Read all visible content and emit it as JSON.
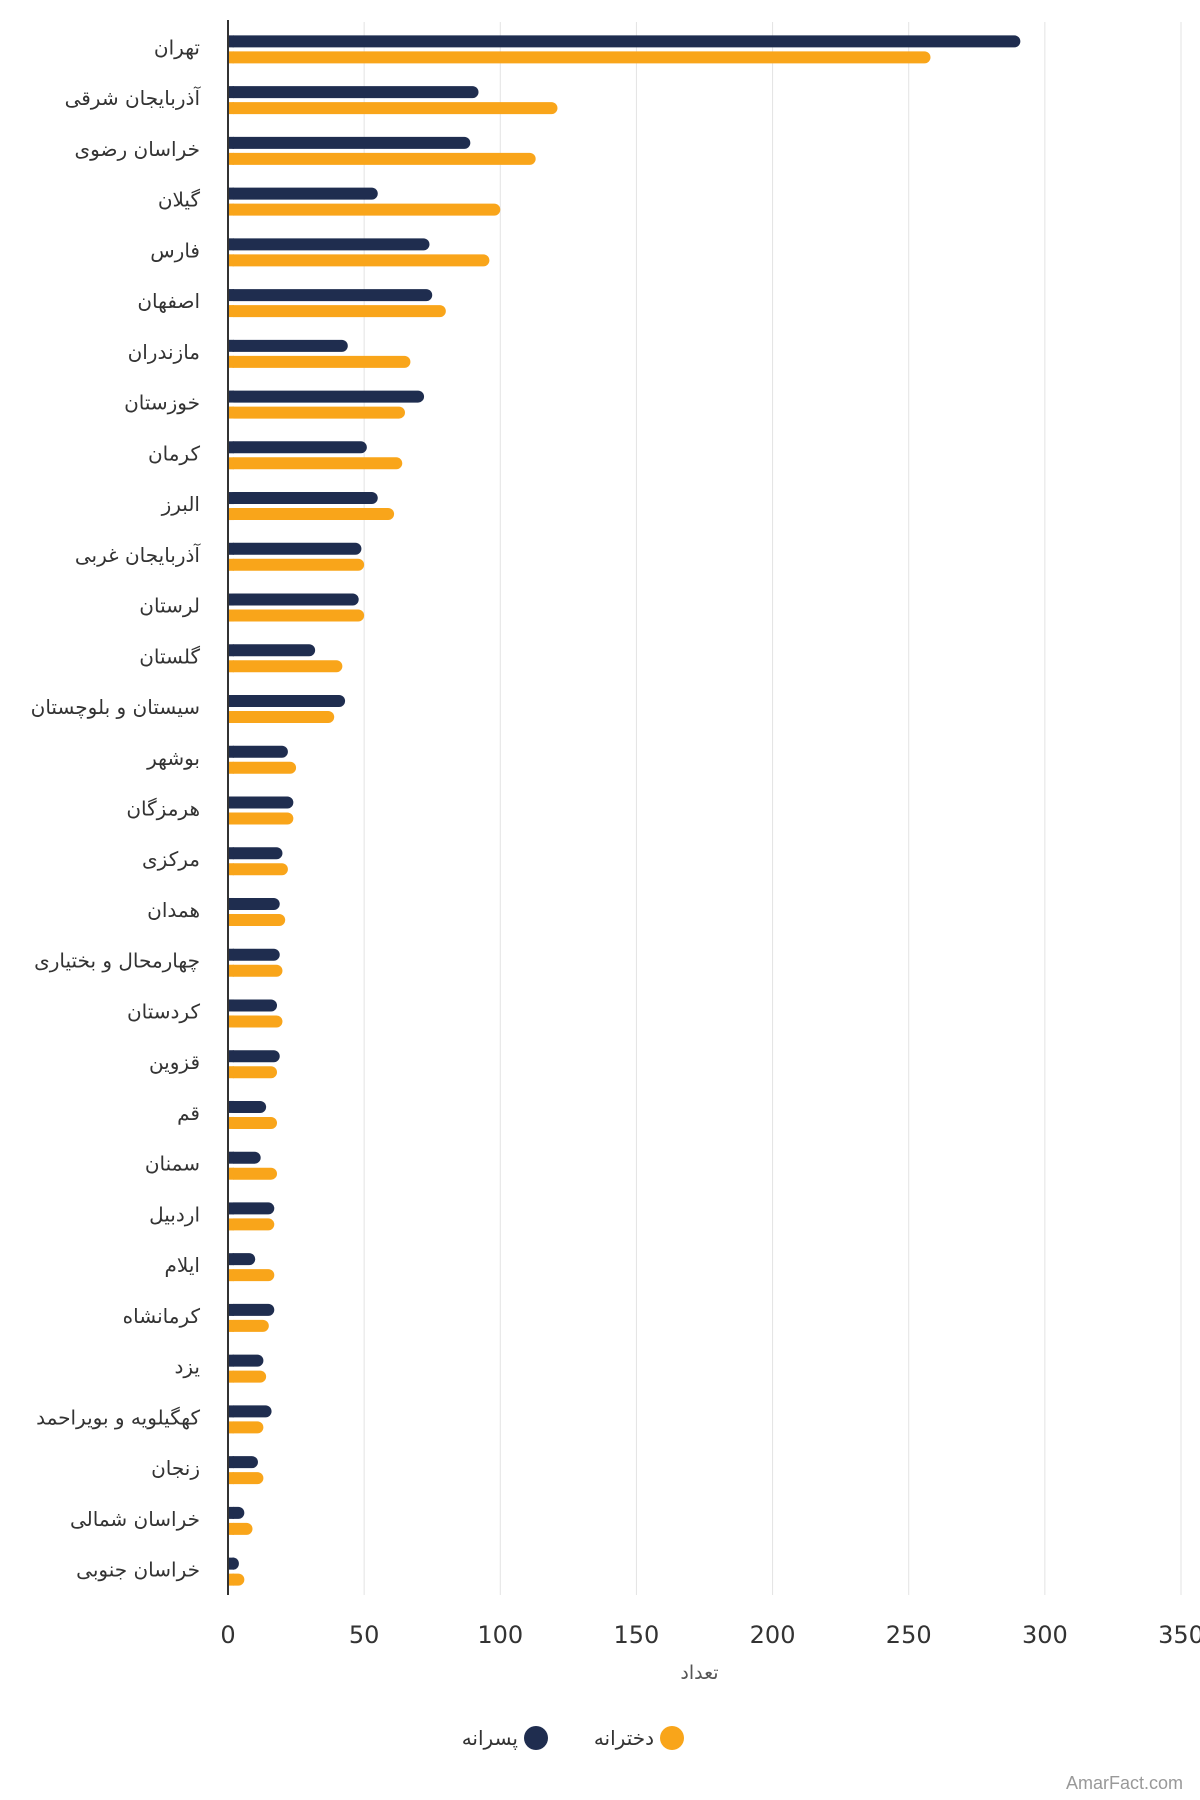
{
  "chart_data": {
    "type": "bar",
    "orientation": "horizontal",
    "categories": [
      "تهران",
      "آذربایجان شرقی",
      "خراسان رضوی",
      "گیلان",
      "فارس",
      "اصفهان",
      "مازندران",
      "خوزستان",
      "کرمان",
      "البرز",
      "آذربایجان غربی",
      "لرستان",
      "گلستان",
      "سیستان و بلوچستان",
      "بوشهر",
      "هرمزگان",
      "مرکزی",
      "همدان",
      "چهارمحال و بختیاری",
      "کردستان",
      "قزوین",
      "قم",
      "سمنان",
      "اردبیل",
      "ایلام",
      "کرمانشاه",
      "یزد",
      "کهگیلویه و بویراحمد",
      "زنجان",
      "خراسان شمالی",
      "خراسان جنوبی"
    ],
    "series": [
      {
        "name": "پسرانه",
        "color": "#1f2d4f",
        "values": [
          291,
          92,
          89,
          55,
          74,
          75,
          44,
          72,
          51,
          55,
          49,
          48,
          32,
          43,
          22,
          24,
          20,
          19,
          19,
          18,
          19,
          14,
          12,
          17,
          10,
          17,
          13,
          16,
          11,
          6,
          4
        ]
      },
      {
        "name": "دخترانه",
        "color": "#f9a51a",
        "values": [
          258,
          121,
          113,
          100,
          96,
          80,
          67,
          65,
          64,
          61,
          50,
          50,
          42,
          39,
          25,
          24,
          22,
          21,
          20,
          20,
          18,
          18,
          18,
          17,
          17,
          15,
          14,
          13,
          13,
          9,
          6
        ]
      }
    ],
    "xlabel": "تعداد",
    "ylabel": "",
    "xlim": [
      0,
      350
    ],
    "xticks": [
      0,
      50,
      100,
      150,
      200,
      250,
      300,
      350
    ],
    "grid": true,
    "legend_position": "bottom-center"
  },
  "legend": {
    "items": [
      {
        "label": "پسرانه",
        "color": "#1f2d4f"
      },
      {
        "label": "دخترانه",
        "color": "#f9a51a"
      }
    ]
  },
  "credit": "AmarFact.com"
}
